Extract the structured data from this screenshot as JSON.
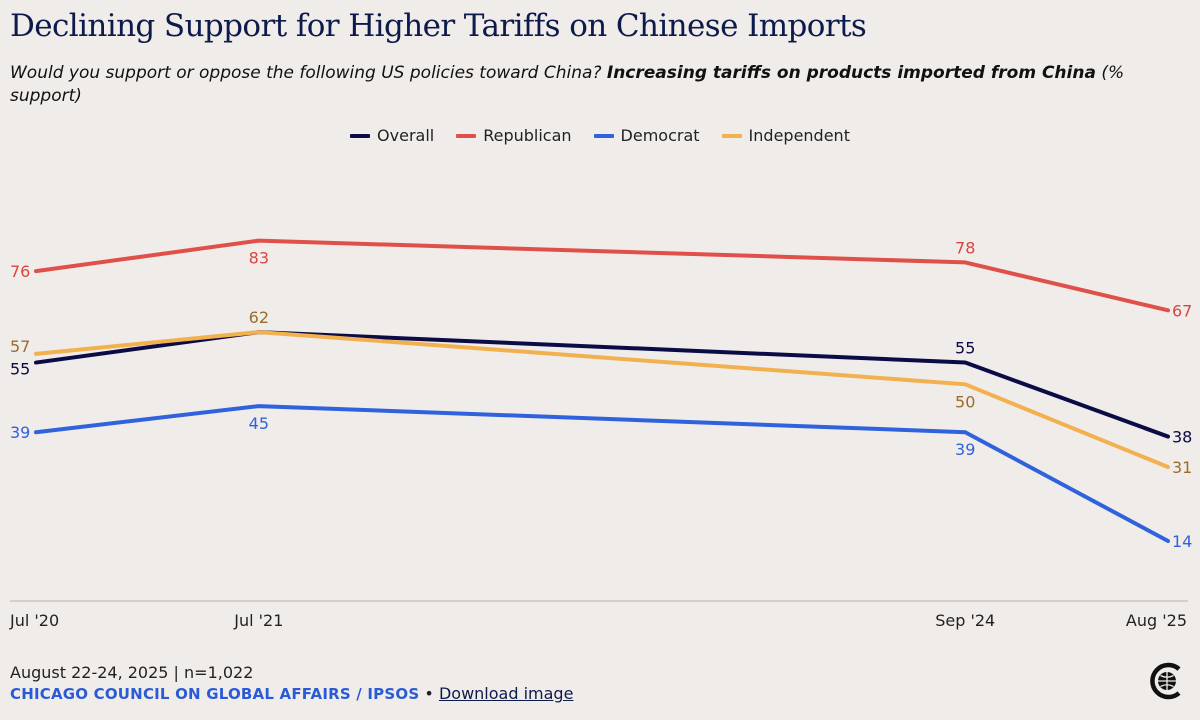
{
  "title": "Declining Support for Higher Tariffs on Chinese Imports",
  "subtitle": {
    "question": "Would you support or oppose the following US policies toward China?",
    "policy": "Increasing tariffs on products imported from China",
    "unit": "(% support)"
  },
  "chart_data": {
    "type": "line",
    "categories": [
      "Jul '20",
      "Jul '21",
      "Sep '24",
      "Aug '25"
    ],
    "x_dates": [
      2020.5,
      2021.5,
      2024.67,
      2025.58
    ],
    "series": [
      {
        "name": "Overall",
        "color": "#0b0b45",
        "label_color": "#0b0b45",
        "values": [
          55,
          62,
          55,
          38
        ]
      },
      {
        "name": "Republican",
        "color": "#e0504a",
        "label_color": "#d9463f",
        "values": [
          76,
          83,
          78,
          67
        ]
      },
      {
        "name": "Democrat",
        "color": "#2f62dc",
        "label_color": "#2f62dc",
        "values": [
          39,
          45,
          39,
          14
        ]
      },
      {
        "name": "Independent",
        "color": "#f2b14e",
        "label_color": "#9a6d2a",
        "values": [
          57,
          62,
          50,
          31
        ]
      }
    ],
    "ylabel": "% support",
    "xlabel": "",
    "ylim": [
      0,
      100
    ],
    "grid": false,
    "legend": "top-center"
  },
  "footer": {
    "date_sample": "August 22-24, 2025 | n=1,022",
    "source": "CHICAGO COUNCIL ON GLOBAL AFFAIRS / IPSOS",
    "separator": "•",
    "download_label": "Download image"
  }
}
